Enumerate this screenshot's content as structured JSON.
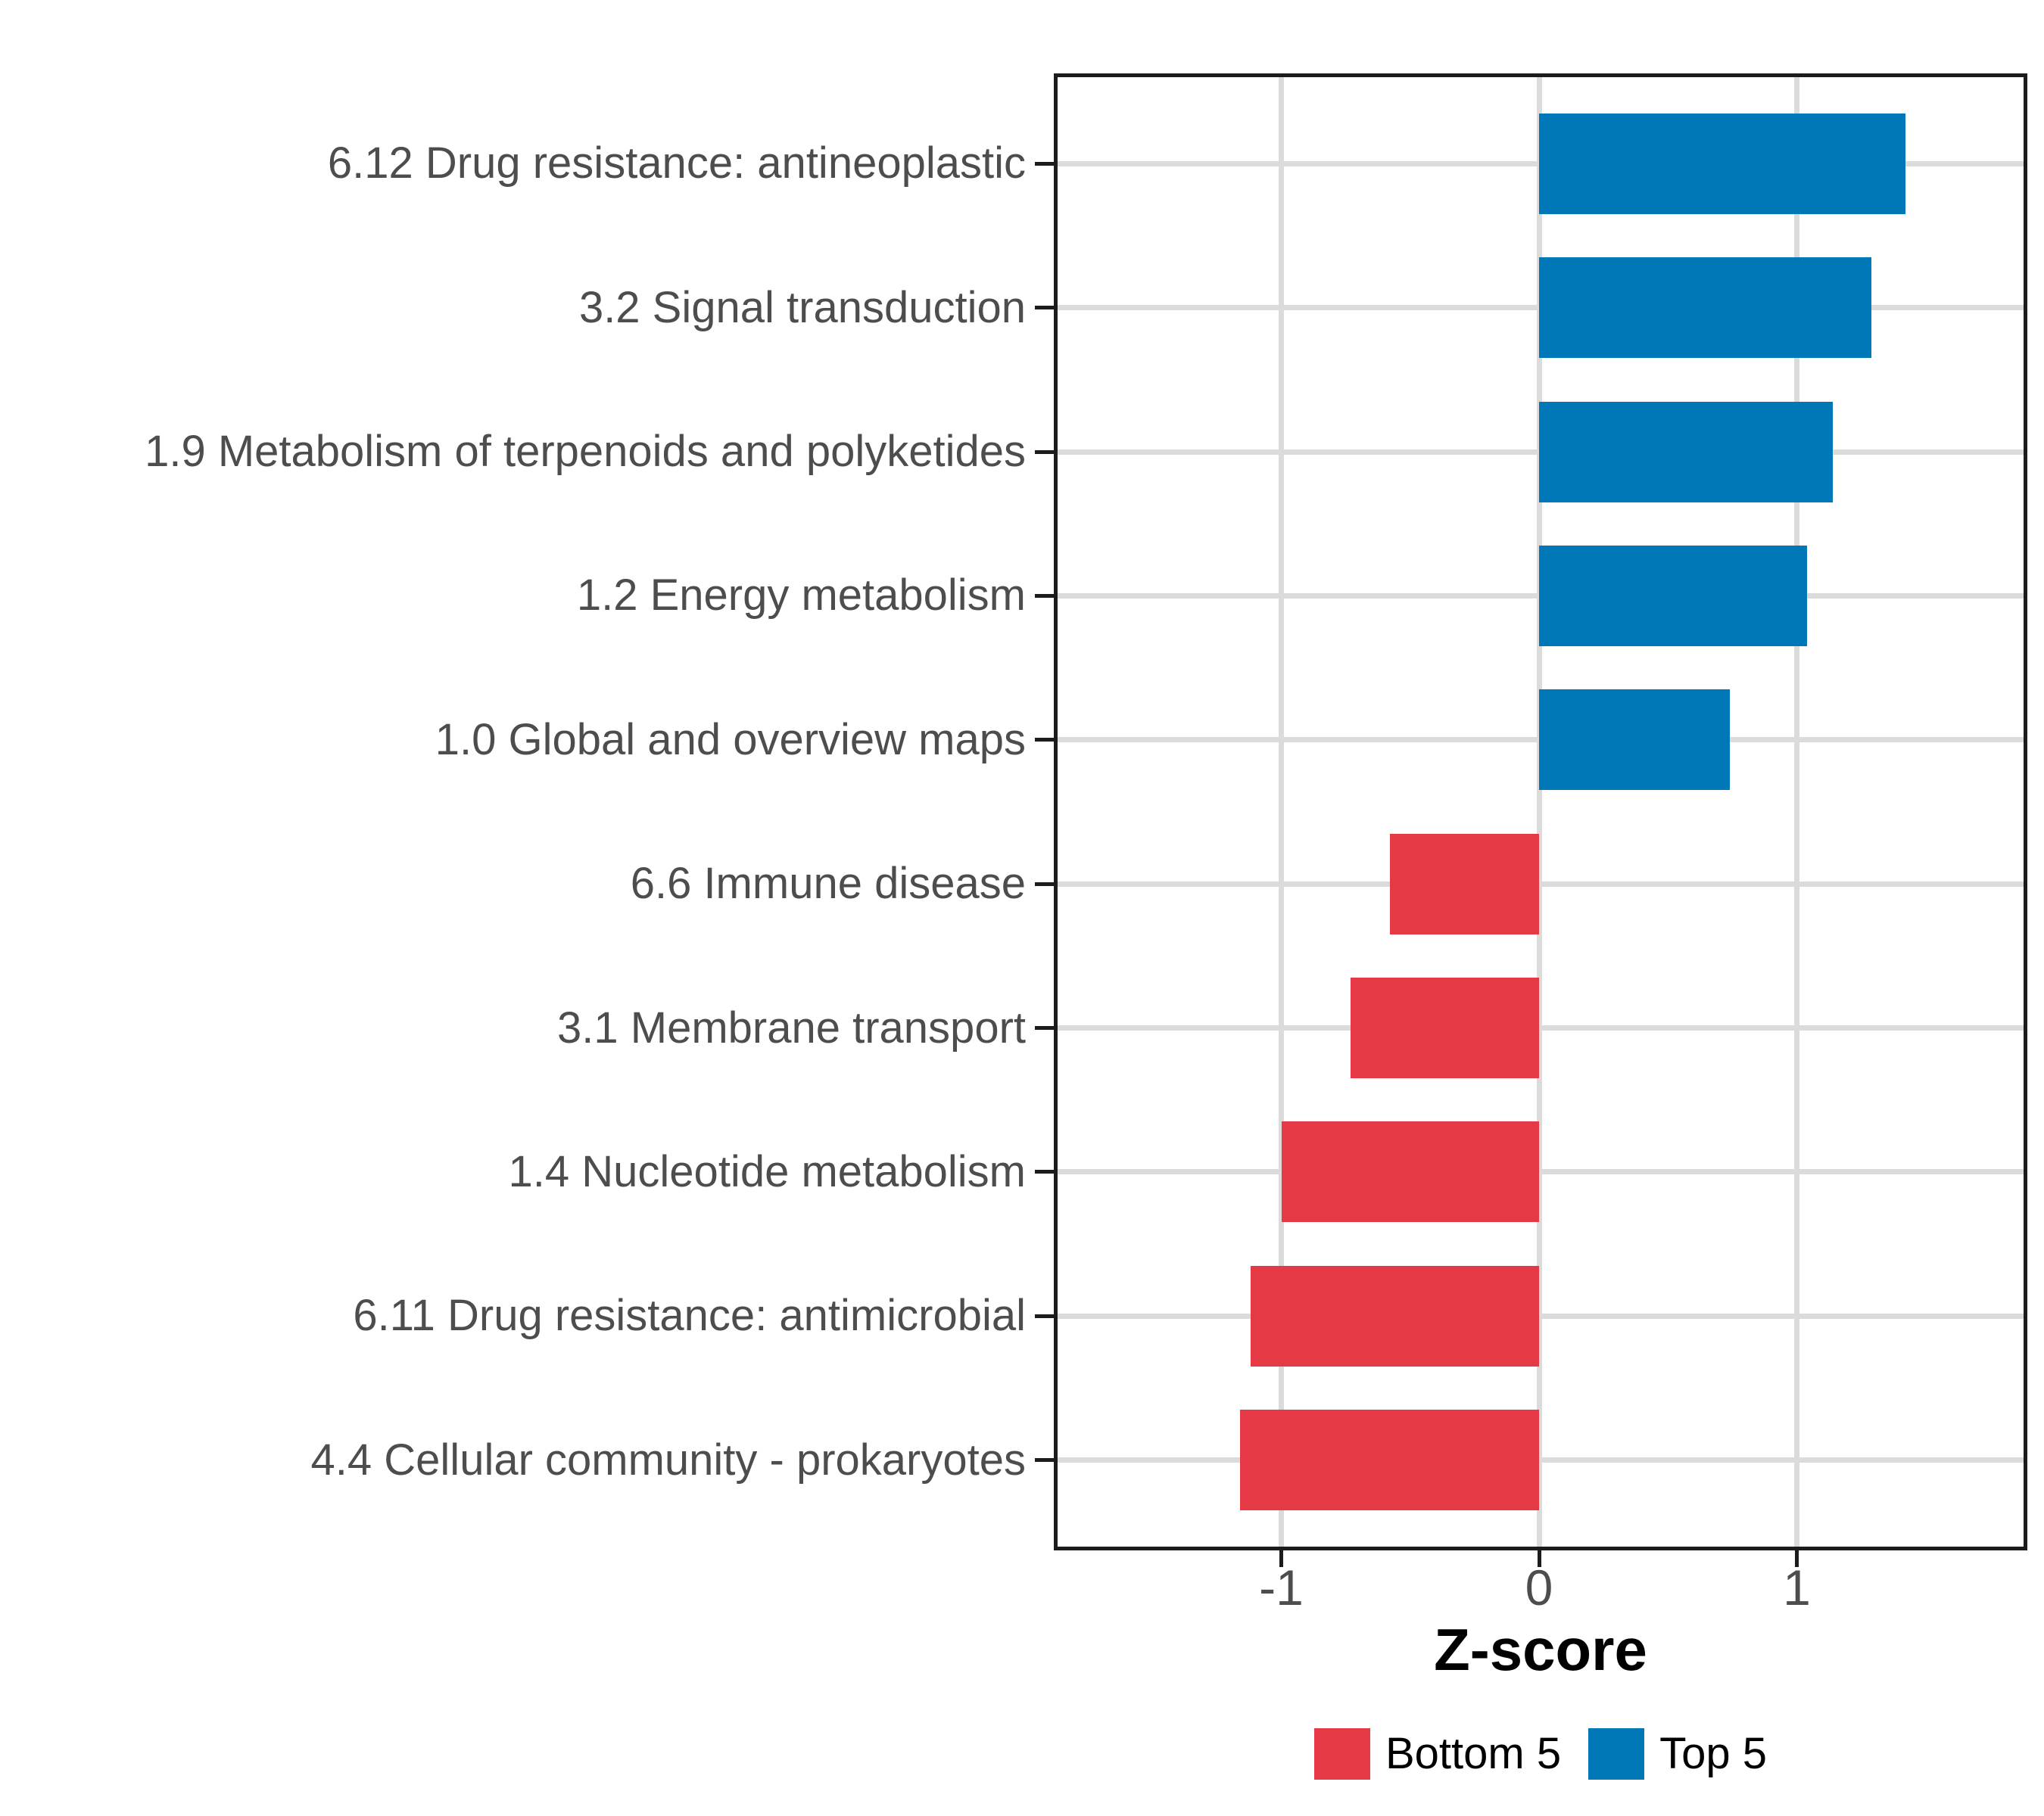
{
  "figure": {
    "background": "#FFFFFF"
  },
  "chart_data": {
    "type": "bar",
    "orientation": "horizontal",
    "title": "",
    "xlabel": "Z-score",
    "ylabel": "",
    "grid": "major-only",
    "legend_position": "bottom-center",
    "xlim": [
      -1.88,
      1.89
    ],
    "x_ticks": [
      {
        "value": -1,
        "label": "-1"
      },
      {
        "value": 0,
        "label": "0"
      },
      {
        "value": 1,
        "label": "1"
      }
    ],
    "categories": [
      "6.12 Drug resistance: antineoplastic",
      "3.2 Signal transduction",
      "1.9 Metabolism of terpenoids and polyketides",
      "1.2 Energy metabolism",
      "1.0 Global and overview maps",
      "6.6 Immune disease",
      "3.1 Membrane transport",
      "1.4 Nucleotide metabolism",
      "6.11 Drug resistance: antimicrobial",
      "4.4 Cellular community - prokaryotes"
    ],
    "values": [
      1.42,
      1.29,
      1.14,
      1.04,
      0.74,
      -0.58,
      -0.73,
      -1.0,
      -1.12,
      -1.16
    ],
    "groups": [
      "Top 5",
      "Top 5",
      "Top 5",
      "Top 5",
      "Top 5",
      "Bottom 5",
      "Bottom 5",
      "Bottom 5",
      "Bottom 5",
      "Bottom 5"
    ],
    "series": [
      {
        "name": "Top 5",
        "color": "#0077B6",
        "categories": [
          "6.12 Drug resistance: antineoplastic",
          "3.2 Signal transduction",
          "1.9 Metabolism of terpenoids and polyketides",
          "1.2 Energy metabolism",
          "1.0 Global and overview maps"
        ],
        "values": [
          1.42,
          1.29,
          1.14,
          1.04,
          0.74
        ]
      },
      {
        "name": "Bottom 5",
        "color": "#E63946",
        "categories": [
          "6.6 Immune disease",
          "3.1 Membrane transport",
          "1.4 Nucleotide metabolism",
          "6.11 Drug resistance: antimicrobial",
          "4.4 Cellular community - prokaryotes"
        ],
        "values": [
          -0.58,
          -0.73,
          -1.0,
          -1.12,
          -1.16
        ]
      }
    ]
  },
  "legend": {
    "items": [
      {
        "label": "Bottom 5",
        "color": "#E63946"
      },
      {
        "label": "Top 5",
        "color": "#0077B6"
      }
    ]
  },
  "colors": {
    "top5": "#0077B6",
    "bottom5": "#E63946",
    "gridline": "#DBDBDB",
    "axis_text": "#4D4D4D",
    "panel_border": "#1C1C1C",
    "tick_mark": "#1C1C1C"
  }
}
